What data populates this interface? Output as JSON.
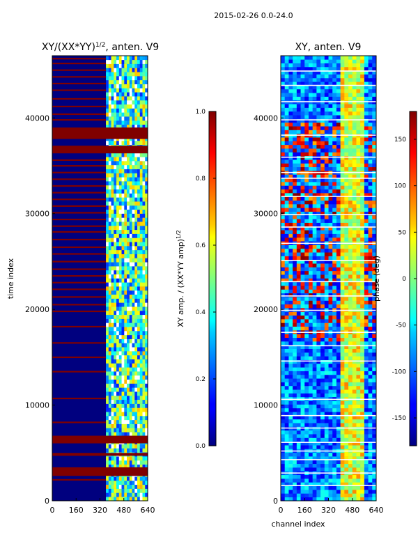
{
  "figure": {
    "suptitle": "2015-02-26 0.0-24.0",
    "colors": {
      "dark_red": "#800000",
      "dark_blue": "#00007f",
      "blue": "#0000ff",
      "cyan": "#00ffff",
      "green": "#7fff7f",
      "yellow": "#ffff00",
      "orange": "#ff7f00",
      "white": "#ffffff"
    }
  },
  "chart_data": [
    {
      "type": "heatmap",
      "title_main": "XY/(XX*YY)",
      "title_exp": "1/2",
      "title_tail": ", anten. V9",
      "xlabel": "",
      "ylabel": "time index",
      "xlim": [
        0,
        640
      ],
      "ylim": [
        0,
        46500
      ],
      "x_ticks": [
        0,
        160,
        320,
        480,
        640
      ],
      "y_ticks": [
        0,
        10000,
        20000,
        30000,
        40000
      ],
      "colorbar": {
        "label_main": "XY amp. / (XX*YY amp)",
        "label_exp": "1/2",
        "range": [
          0.0,
          1.0
        ],
        "ticks": [
          "0.0",
          "0.2",
          "0.4",
          "0.6",
          "0.8",
          "1.0"
        ]
      },
      "solid_red_bands": [
        [
          2600,
          3500
        ],
        [
          4700,
          5000
        ],
        [
          6000,
          6800
        ],
        [
          36300,
          37100
        ],
        [
          37800,
          39000
        ]
      ],
      "red_stripe_rows": [
        2200,
        8200,
        10700,
        13500,
        15000,
        16500,
        18200,
        19800,
        20500,
        21300,
        22100,
        22800,
        23500,
        24200,
        25000,
        25800,
        26500,
        27300,
        28100,
        28700,
        29400,
        30100,
        30800,
        31500,
        32200,
        32900,
        33600,
        34300,
        35000,
        35600,
        39800,
        40400,
        41200,
        42000,
        42900,
        43600,
        44300,
        45000,
        45700,
        46200
      ],
      "high_channel_region": [
        360,
        640
      ]
    },
    {
      "type": "heatmap",
      "title": "XY, anten. V9",
      "xlabel": "channel index",
      "ylabel": "",
      "xlim": [
        0,
        640
      ],
      "ylim": [
        0,
        46500
      ],
      "x_ticks": [
        0,
        160,
        320,
        480,
        640
      ],
      "y_ticks": [
        0,
        10000,
        20000,
        30000,
        40000
      ],
      "colorbar": {
        "label": "phase (deg)",
        "range": [
          -180,
          180
        ],
        "ticks": [
          "-150",
          "-100",
          "-50",
          "0",
          "50",
          "100",
          "150"
        ]
      },
      "white_gap_rows": [
        1600,
        2900,
        4300,
        5200,
        6100,
        7600,
        8900,
        10600,
        14600,
        16200,
        17600,
        19900,
        21400,
        22900,
        25100,
        26900,
        28600,
        29900,
        31800,
        33700,
        34300,
        35900,
        38200,
        39800,
        41700,
        43400,
        44900
      ]
    }
  ]
}
